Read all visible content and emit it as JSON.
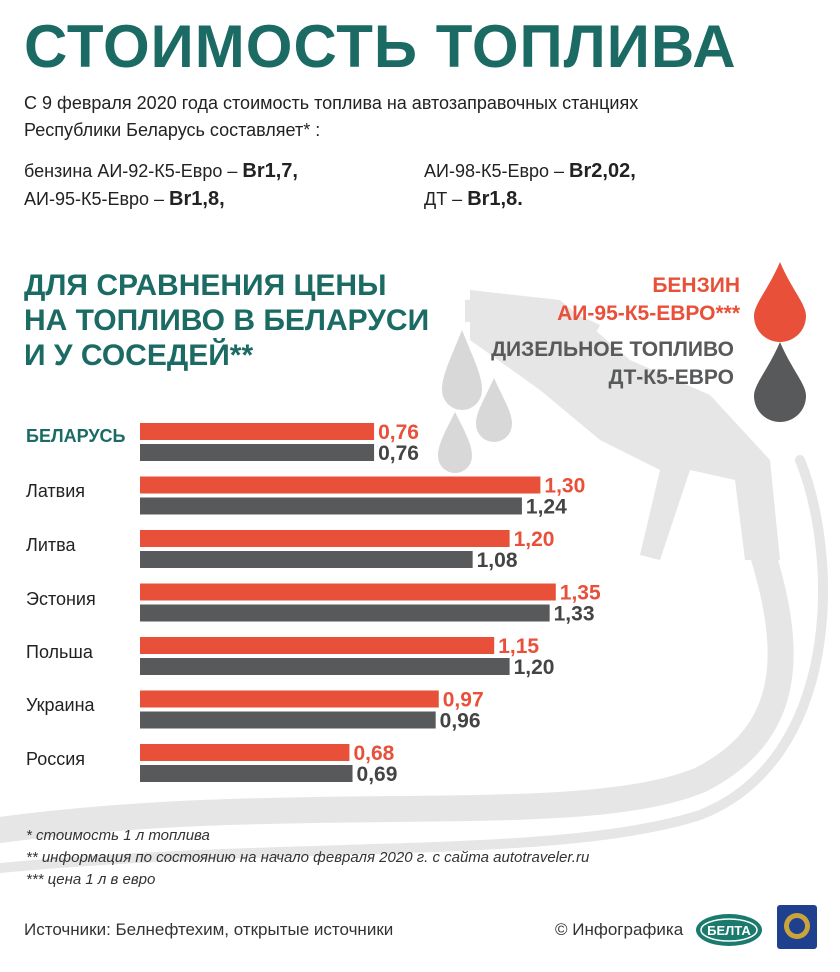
{
  "title": "СТОИМОСТЬ ТОПЛИВА",
  "intro": {
    "line1": "С 9 февраля 2020 года стоимость топлива на автозаправочных станциях",
    "line2": "Республики Беларусь составляет* :"
  },
  "prices": [
    {
      "label": "бензина АИ-92-К5-Евро – ",
      "value": "Br1,7,"
    },
    {
      "label": "АИ-95-К5-Евро – ",
      "value": "Br1,8,"
    },
    {
      "label": "АИ-98-К5-Евро – ",
      "value": "Br2,02,"
    },
    {
      "label": "ДТ – ",
      "value": "Br1,8."
    }
  ],
  "subtitle": {
    "line1": "ДЛЯ СРАВНЕНИЯ ЦЕНЫ",
    "line2": "НА ТОПЛИВО В БЕЛАРУСИ",
    "line3": "И У СОСЕДЕЙ**"
  },
  "colors": {
    "accent": "#1b6b64",
    "petrol": "#e8503a",
    "diesel": "#58595b",
    "background_art": "#e6e6e6"
  },
  "chart_data": {
    "type": "bar",
    "orientation": "horizontal",
    "categories": [
      "БЕЛАРУСЬ",
      "Латвия",
      "Литва",
      "Эстония",
      "Польша",
      "Украина",
      "Россия"
    ],
    "highlighted_category": "БЕЛАРУСЬ",
    "series": [
      {
        "name": "БЕНЗИН АИ-95-К5-ЕВРО***",
        "legend_lines": [
          "БЕНЗИН",
          "АИ-95-К5-ЕВРО***"
        ],
        "color": "#e8503a",
        "values": [
          0.76,
          1.3,
          1.2,
          1.35,
          1.15,
          0.97,
          0.68
        ],
        "labels": [
          "0,76",
          "1,30",
          "1,20",
          "1,35",
          "1,15",
          "0,97",
          "0,68"
        ]
      },
      {
        "name": "ДИЗЕЛЬНОЕ ТОПЛИВО ДТ-К5-ЕВРО",
        "legend_lines": [
          "ДИЗЕЛЬНОЕ ТОПЛИВО",
          "ДТ-К5-ЕВРО"
        ],
        "color": "#58595b",
        "values": [
          0.76,
          1.24,
          1.08,
          1.33,
          1.2,
          0.96,
          0.69
        ],
        "labels": [
          "0,76",
          "1,24",
          "1,08",
          "1,33",
          "1,20",
          "0,96",
          "0,69"
        ]
      }
    ],
    "legend_position": "top-right",
    "grid": false
  },
  "footnotes": [
    "* стоимость 1 л топлива",
    "** информация по состоянию на начало февраля 2020 г. с сайта autotraveler.ru",
    "*** цена 1 л в евро"
  ],
  "footer": {
    "sources": "Источники: Белнефтехим, открытые источники",
    "credit": "© Инфографика",
    "logo_text": "БЕЛТА"
  }
}
